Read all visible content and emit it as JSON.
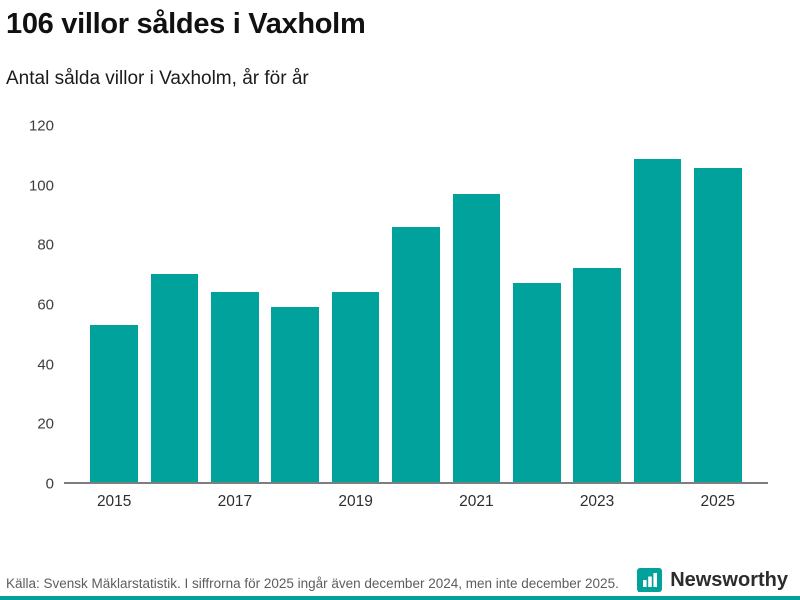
{
  "header": {
    "title": "106 villor såldes i Vaxholm",
    "subtitle": "Antal sålda villor i Vaxholm, år för år"
  },
  "chart_data": {
    "type": "bar",
    "title": "106 villor såldes i Vaxholm",
    "subtitle": "Antal sålda villor i Vaxholm, år för år",
    "categories": [
      "2015",
      "2016",
      "2017",
      "2018",
      "2019",
      "2020",
      "2021",
      "2022",
      "2023",
      "2024",
      "2025"
    ],
    "values": [
      53,
      70,
      64,
      59,
      64,
      86,
      97,
      67,
      72,
      109,
      106
    ],
    "x_tick_labels": [
      "2015",
      "2017",
      "2019",
      "2021",
      "2023",
      "2025"
    ],
    "yticks": [
      0,
      20,
      40,
      60,
      80,
      100,
      120
    ],
    "ylim": [
      0,
      120
    ],
    "xlabel": "",
    "ylabel": "",
    "grid": false,
    "legend": "none",
    "bar_color": "#00a29b"
  },
  "footer": {
    "source": "Källa: Svensk Mäklarstatistik. I siffrorna för 2025 ingår även december 2024, men inte december 2025.",
    "brand": "Newsworthy",
    "brand_color": "#00a29b",
    "brand_icon": "bar-chart-bubble-icon"
  }
}
